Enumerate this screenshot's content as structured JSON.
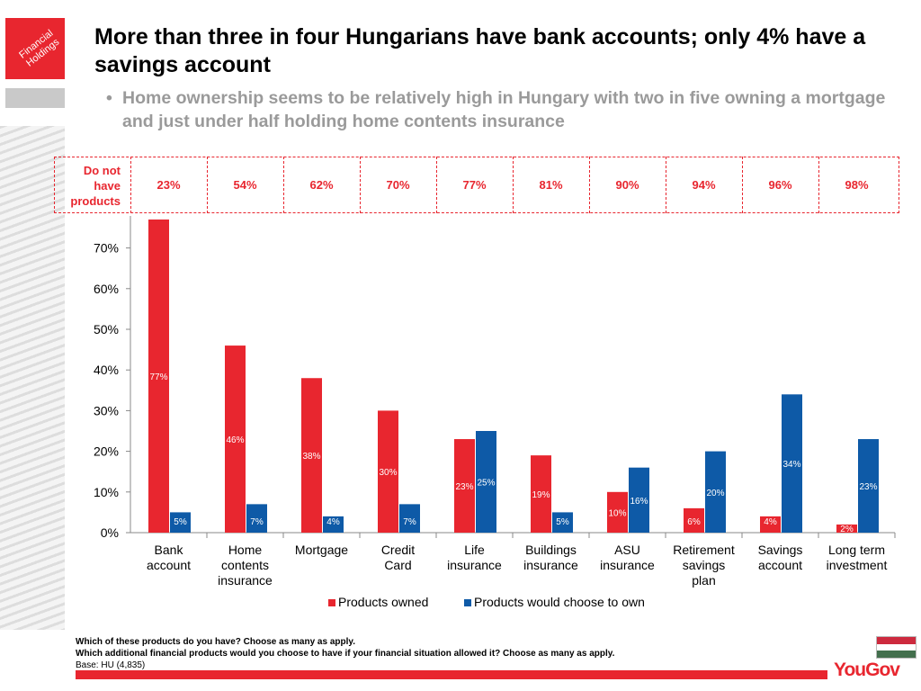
{
  "logo": {
    "text": "Financial Holdings"
  },
  "title": "More than three in four Hungarians have bank accounts; only 4% have a savings account",
  "bullet": "•",
  "subtitle": "Home ownership seems to be relatively high in Hungary with two in five owning a mortgage and just under half holding home contents insurance",
  "do_not_have": {
    "label": "Do not have products",
    "values": [
      "23%",
      "54%",
      "62%",
      "70%",
      "77%",
      "81%",
      "90%",
      "94%",
      "96%",
      "98%"
    ]
  },
  "chart_data": {
    "type": "bar",
    "categories": [
      "Bank account",
      "Home contents insurance",
      "Mortgage",
      "Credit Card",
      "Life insurance",
      "Buildings insurance",
      "ASU insurance",
      "Retirement savings plan",
      "Savings account",
      "Long term investment"
    ],
    "series": [
      {
        "name": "Products owned",
        "values": [
          77,
          46,
          38,
          30,
          23,
          19,
          10,
          6,
          4,
          2
        ],
        "color": "#e8262f"
      },
      {
        "name": "Products would choose to own",
        "values": [
          5,
          7,
          4,
          7,
          25,
          5,
          16,
          20,
          34,
          23
        ],
        "color": "#0e5aa7"
      }
    ],
    "yticks": [
      "0%",
      "10%",
      "20%",
      "30%",
      "40%",
      "50%",
      "60%",
      "70%"
    ],
    "ylim": [
      0,
      80
    ],
    "grid": false,
    "legend": "bottom"
  },
  "footnotes": {
    "q1": "Which of these products do you have? Choose as many as apply.",
    "q2": "Which additional financial products would you choose to have if your financial situation allowed it? Choose as many as apply.",
    "base": "Base: HU (4,835)"
  },
  "flag_colors": [
    "#cd2a3e",
    "#ffffff",
    "#436f4d"
  ],
  "brand": "YouGov"
}
